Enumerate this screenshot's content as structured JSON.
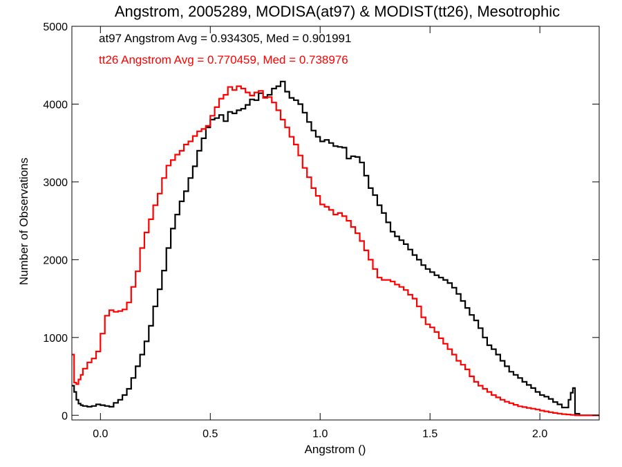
{
  "chart_data": {
    "type": "line",
    "title": "Angstrom, 2005289, MODISA(at97) & MODIST(tt26), Mesotrophic",
    "xlabel": "Angstrom ()",
    "ylabel": "Number of Observations",
    "xlim": [
      -0.13,
      2.27
    ],
    "ylim": [
      -60,
      5000
    ],
    "xticks": [
      0.0,
      0.5,
      1.0,
      1.5,
      2.0
    ],
    "xtick_labels": [
      "0.0",
      "0.5",
      "1.0",
      "1.5",
      "2.0"
    ],
    "yticks": [
      0,
      1000,
      2000,
      3000,
      4000,
      5000
    ],
    "ytick_labels": [
      "0",
      "1000",
      "2000",
      "3000",
      "4000",
      "5000"
    ],
    "grid": false,
    "legend": "top-left",
    "annotations": [
      {
        "text": "at97 Angstrom Avg = 0.934305, Med = 0.901991",
        "color": "#000000"
      },
      {
        "text": "tt26 Angstrom Avg = 0.770459, Med = 0.738976",
        "color": "#ff0000"
      }
    ],
    "series": [
      {
        "color": "#000000",
        "x": [
          -0.13,
          -0.12,
          -0.11,
          -0.1,
          -0.09,
          -0.08,
          -0.06,
          -0.04,
          -0.02,
          0.0,
          0.02,
          0.04,
          0.06,
          0.08,
          0.1,
          0.12,
          0.14,
          0.16,
          0.18,
          0.2,
          0.22,
          0.24,
          0.26,
          0.28,
          0.3,
          0.32,
          0.34,
          0.36,
          0.38,
          0.4,
          0.42,
          0.44,
          0.46,
          0.48,
          0.5,
          0.52,
          0.54,
          0.56,
          0.58,
          0.6,
          0.62,
          0.64,
          0.66,
          0.68,
          0.7,
          0.72,
          0.74,
          0.76,
          0.78,
          0.8,
          0.82,
          0.84,
          0.86,
          0.88,
          0.9,
          0.92,
          0.94,
          0.96,
          0.98,
          1.0,
          1.02,
          1.04,
          1.06,
          1.08,
          1.1,
          1.12,
          1.14,
          1.16,
          1.18,
          1.2,
          1.22,
          1.24,
          1.26,
          1.28,
          1.3,
          1.32,
          1.34,
          1.36,
          1.38,
          1.4,
          1.42,
          1.44,
          1.46,
          1.48,
          1.5,
          1.52,
          1.54,
          1.56,
          1.58,
          1.6,
          1.62,
          1.64,
          1.66,
          1.68,
          1.7,
          1.72,
          1.74,
          1.76,
          1.78,
          1.8,
          1.82,
          1.84,
          1.86,
          1.88,
          1.9,
          1.92,
          1.94,
          1.96,
          1.98,
          2.0,
          2.02,
          2.04,
          2.06,
          2.08,
          2.1,
          2.12,
          2.13,
          2.14,
          2.15,
          2.16,
          2.18,
          2.2,
          2.22,
          2.24,
          2.27
        ],
        "y": [
          380,
          300,
          200,
          150,
          130,
          120,
          110,
          120,
          140,
          130,
          120,
          110,
          160,
          200,
          260,
          340,
          480,
          630,
          780,
          950,
          1150,
          1400,
          1620,
          1860,
          2150,
          2400,
          2580,
          2750,
          2880,
          3050,
          3200,
          3400,
          3560,
          3700,
          3800,
          3820,
          3860,
          3780,
          3900,
          3880,
          3920,
          3940,
          3990,
          4060,
          4050,
          4140,
          4090,
          4120,
          4200,
          4230,
          4290,
          4160,
          4080,
          4050,
          4000,
          3890,
          3770,
          3660,
          3580,
          3520,
          3540,
          3500,
          3460,
          3450,
          3440,
          3300,
          3330,
          3320,
          3250,
          3080,
          2920,
          2830,
          2700,
          2600,
          2480,
          2360,
          2300,
          2250,
          2200,
          2130,
          2060,
          2000,
          1930,
          1880,
          1840,
          1800,
          1770,
          1740,
          1700,
          1640,
          1560,
          1470,
          1380,
          1290,
          1220,
          1120,
          1000,
          900,
          850,
          780,
          700,
          630,
          560,
          520,
          480,
          430,
          390,
          350,
          300,
          260,
          240,
          210,
          170,
          140,
          100,
          100,
          200,
          290,
          350,
          20,
          0,
          0,
          0,
          0,
          0
        ]
      },
      {
        "color": "#ff0000",
        "x": [
          -0.13,
          -0.12,
          -0.11,
          -0.1,
          -0.09,
          -0.08,
          -0.06,
          -0.04,
          -0.02,
          0.0,
          0.02,
          0.04,
          0.06,
          0.08,
          0.1,
          0.12,
          0.14,
          0.16,
          0.18,
          0.2,
          0.22,
          0.24,
          0.26,
          0.28,
          0.3,
          0.32,
          0.34,
          0.36,
          0.38,
          0.4,
          0.42,
          0.44,
          0.46,
          0.48,
          0.5,
          0.52,
          0.54,
          0.56,
          0.58,
          0.6,
          0.62,
          0.64,
          0.66,
          0.68,
          0.7,
          0.72,
          0.74,
          0.76,
          0.78,
          0.8,
          0.82,
          0.84,
          0.86,
          0.88,
          0.9,
          0.92,
          0.94,
          0.96,
          0.98,
          1.0,
          1.02,
          1.04,
          1.06,
          1.08,
          1.1,
          1.12,
          1.14,
          1.16,
          1.18,
          1.2,
          1.22,
          1.24,
          1.26,
          1.28,
          1.3,
          1.32,
          1.34,
          1.36,
          1.38,
          1.4,
          1.42,
          1.44,
          1.46,
          1.48,
          1.5,
          1.52,
          1.54,
          1.56,
          1.58,
          1.6,
          1.62,
          1.64,
          1.66,
          1.68,
          1.7,
          1.72,
          1.74,
          1.76,
          1.78,
          1.8,
          1.82,
          1.84,
          1.86,
          1.88,
          1.9,
          1.92,
          1.94,
          1.96,
          1.98,
          2.0,
          2.02,
          2.04,
          2.06,
          2.08,
          2.1,
          2.12,
          2.14,
          2.16,
          2.18,
          2.2,
          2.22,
          2.24,
          2.27
        ],
        "y": [
          780,
          420,
          400,
          460,
          520,
          600,
          680,
          730,
          820,
          1050,
          1280,
          1350,
          1330,
          1340,
          1360,
          1450,
          1650,
          1850,
          2150,
          2350,
          2520,
          2700,
          2850,
          3050,
          3210,
          3280,
          3350,
          3400,
          3480,
          3520,
          3590,
          3650,
          3680,
          3720,
          3850,
          3960,
          4070,
          4120,
          4220,
          4180,
          4230,
          4200,
          4150,
          4110,
          4150,
          4170,
          4080,
          4090,
          4020,
          3920,
          3800,
          3700,
          3580,
          3480,
          3340,
          3180,
          3060,
          2920,
          2820,
          2710,
          2680,
          2640,
          2580,
          2600,
          2560,
          2500,
          2420,
          2340,
          2240,
          2120,
          2000,
          1880,
          1770,
          1740,
          1740,
          1720,
          1680,
          1650,
          1610,
          1550,
          1500,
          1400,
          1260,
          1170,
          1130,
          1070,
          990,
          920,
          850,
          780,
          700,
          650,
          590,
          500,
          430,
          380,
          340,
          300,
          260,
          230,
          200,
          175,
          155,
          135,
          115,
          105,
          95,
          85,
          75,
          60,
          50,
          40,
          30,
          22,
          15,
          10,
          5,
          0,
          0,
          0,
          0,
          0,
          0
        ]
      }
    ]
  }
}
